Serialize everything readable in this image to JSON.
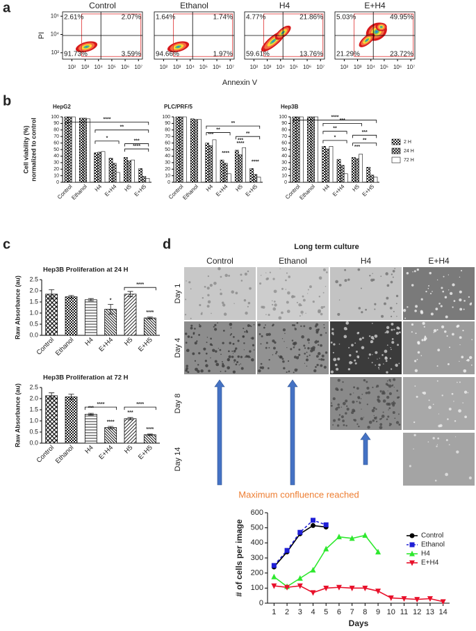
{
  "panel_labels": [
    "a",
    "b",
    "c",
    "d"
  ],
  "chart_data": [
    {
      "type": "flow",
      "title": "Control",
      "ylabel": "PI",
      "xscale": "log",
      "yscale": "log",
      "xlim": [
        20,
        20000000
      ],
      "ylim": [
        20,
        3000000
      ],
      "xticks": [
        {
          "value": 100,
          "label": "10²"
        },
        {
          "value": 1000,
          "label": "10³"
        },
        {
          "value": 10000,
          "label": "10⁴"
        },
        {
          "value": 100000,
          "label": "10⁵"
        },
        {
          "value": 1000000,
          "label": "10⁶"
        },
        {
          "value": 10000000,
          "label": "10⁷"
        }
      ],
      "yticks": [
        {
          "value": 100,
          "label": "10²"
        },
        {
          "value": 10000,
          "label": "10⁴"
        },
        {
          "value": 1000000,
          "label": "10⁶"
        }
      ],
      "values": [
        2.61,
        2.07,
        91.73,
        3.59
      ],
      "value_labels": [
        "2.61%",
        "2.07%",
        "91.73%",
        "3.59%"
      ]
    },
    {
      "type": "flow",
      "title": "Ethanol",
      "xlabel": "Annexin V",
      "xscale": "log",
      "yscale": "log",
      "xlim": [
        20,
        20000000
      ],
      "ylim": [
        20,
        3000000
      ],
      "xticks": [
        {
          "value": 100,
          "label": "10²"
        },
        {
          "value": 1000,
          "label": "10³"
        },
        {
          "value": 10000,
          "label": "10⁴"
        },
        {
          "value": 100000,
          "label": "10⁵"
        },
        {
          "value": 1000000,
          "label": "10⁶"
        },
        {
          "value": 10000000,
          "label": "10⁷"
        }
      ],
      "values": [
        1.64,
        1.74,
        94.66,
        1.97
      ],
      "value_labels": [
        "1.64%",
        "1.74%",
        "94.66%",
        "1.97%"
      ]
    },
    {
      "type": "flow",
      "title": "H4",
      "xscale": "log",
      "yscale": "log",
      "xlim": [
        20,
        20000000
      ],
      "ylim": [
        20,
        3000000
      ],
      "xticks": [
        {
          "value": 100,
          "label": "10²"
        },
        {
          "value": 1000,
          "label": "10³"
        },
        {
          "value": 10000,
          "label": "10⁴"
        },
        {
          "value": 100000,
          "label": "10⁵"
        },
        {
          "value": 1000000,
          "label": "10⁶"
        },
        {
          "value": 10000000,
          "label": "10⁷"
        }
      ],
      "values": [
        4.77,
        21.86,
        59.61,
        13.76
      ],
      "value_labels": [
        "4.77%",
        "21.86%",
        "59.61%",
        "13.76%"
      ]
    },
    {
      "type": "flow",
      "title": "E+H4",
      "xscale": "log",
      "yscale": "log",
      "xlim": [
        20,
        20000000
      ],
      "ylim": [
        20,
        3000000
      ],
      "xticks": [
        {
          "value": 100,
          "label": "10²"
        },
        {
          "value": 1000,
          "label": "10³"
        },
        {
          "value": 10000,
          "label": "10⁴"
        },
        {
          "value": 100000,
          "label": "10⁵"
        },
        {
          "value": 1000000,
          "label": "10⁶"
        },
        {
          "value": 10000000,
          "label": "10⁷"
        }
      ],
      "values": [
        5.03,
        49.95,
        21.29,
        23.72
      ],
      "value_labels": [
        "5.03%",
        "49.95%",
        "21.29%",
        "23.72%"
      ]
    },
    {
      "type": "bar",
      "title": "HepG2",
      "ylabel": [
        "Cell viability (%)",
        "normalized to control"
      ],
      "categories": [
        "Control",
        "Ethanol",
        "H4",
        "E+H4",
        "H5",
        "E+H5"
      ],
      "series": [
        {
          "name": "2 H",
          "color": "#111111",
          "pattern": "checker",
          "values": [
            100,
            98,
            45,
            37,
            38,
            21
          ]
        },
        {
          "name": "24 H",
          "color": "#111111",
          "pattern": "cross",
          "values": [
            100,
            98,
            46,
            29,
            33,
            9
          ]
        },
        {
          "name": "72 H",
          "color": "#111111",
          "pattern": "none",
          "values": [
            100,
            97,
            47,
            15,
            34,
            6
          ]
        }
      ],
      "ylim": [
        0,
        100
      ],
      "yticks": [
        0,
        10,
        20,
        30,
        40,
        50,
        60,
        70,
        80,
        90,
        100
      ],
      "annotations": [
        "****",
        "**",
        "*",
        "***",
        "****"
      ]
    },
    {
      "type": "bar",
      "title": "PLC/PRF/5",
      "categories": [
        "Control",
        "Ethanol",
        "H4",
        "E+H4",
        "H5",
        "E+H5"
      ],
      "series": [
        {
          "name": "2 H",
          "color": "#111111",
          "pattern": "checker",
          "values": [
            100,
            97,
            60,
            34,
            49,
            21
          ]
        },
        {
          "name": "24 H",
          "color": "#111111",
          "pattern": "cross",
          "values": [
            100,
            96,
            56,
            29,
            42,
            12
          ]
        },
        {
          "name": "72 H",
          "color": "#111111",
          "pattern": "none",
          "values": [
            100,
            96,
            65,
            13,
            53,
            8
          ]
        }
      ],
      "ylim": [
        0,
        100
      ],
      "yticks": [
        0,
        10,
        20,
        30,
        40,
        50,
        60,
        70,
        80,
        90,
        100
      ],
      "annotations": [
        "**",
        "**",
        "***",
        "****",
        "***",
        "****",
        "**",
        "****"
      ]
    },
    {
      "type": "bar",
      "title": "Hep3B",
      "legend": "right",
      "categories": [
        "Control",
        "Ethanol",
        "H4",
        "E+H4",
        "H5",
        "E+H5"
      ],
      "series": [
        {
          "name": "2 H",
          "color": "#111111",
          "pattern": "checker",
          "values": [
            100,
            100,
            55,
            35,
            38,
            23
          ]
        },
        {
          "name": "24 H",
          "color": "#111111",
          "pattern": "cross",
          "values": [
            100,
            100,
            51,
            26,
            36,
            11
          ]
        },
        {
          "name": "72 H",
          "color": "#111111",
          "pattern": "none",
          "values": [
            100,
            100,
            55,
            13,
            43,
            8
          ]
        }
      ],
      "ylim": [
        0,
        100
      ],
      "yticks": [
        0,
        10,
        20,
        30,
        40,
        50,
        60,
        70,
        80,
        90,
        100
      ],
      "annotations": [
        "****",
        "***",
        "**",
        "*",
        "***",
        "***",
        "**"
      ]
    },
    {
      "type": "bar",
      "title": "Hep3B Proliferation at 24 H",
      "ylabel": "Raw Absorbance (au)",
      "categories": [
        "Control",
        "Ethanol",
        "H4",
        "E+H4",
        "H5",
        "E+H5"
      ],
      "values": [
        1.85,
        1.73,
        1.6,
        1.17,
        1.85,
        0.78
      ],
      "errors": [
        0.2,
        0.06,
        0.05,
        0.22,
        0.12,
        0.04
      ],
      "color": "#111111",
      "ylim": [
        0,
        2.5
      ],
      "yticks": [
        {
          "value": 0,
          "label": "0.0"
        },
        0.5,
        {
          "value": 1,
          "label": "1.0"
        },
        1.5,
        {
          "value": 2,
          "label": "2.0"
        },
        2.5
      ],
      "annotations": [
        "*",
        "****",
        "****"
      ]
    },
    {
      "type": "bar",
      "title": "Hep3B Proliferation at 72 H",
      "ylabel": "Raw Absorbance (au)",
      "categories": [
        "Control",
        "Ethanol",
        "H4",
        "E+H4",
        "H5",
        "E+H5"
      ],
      "values": [
        2.13,
        2.08,
        1.3,
        0.7,
        1.1,
        0.38
      ],
      "errors": [
        0.13,
        0.12,
        0.04,
        0.05,
        0.05,
        0.03
      ],
      "color": "#111111",
      "ylim": [
        0,
        2.5
      ],
      "yticks": [
        {
          "value": 0,
          "label": "0.0"
        },
        0.5,
        {
          "value": 1,
          "label": "1.0"
        },
        1.5,
        {
          "value": 2,
          "label": "2.0"
        },
        2.5
      ],
      "annotations": [
        "***",
        "****",
        "****",
        "***",
        "****",
        "****"
      ]
    },
    {
      "type": "line",
      "xlabel": "Days",
      "ylabel": "# of cells per image",
      "legend": "right",
      "x": [
        1,
        2,
        3,
        4,
        5,
        6,
        7,
        8,
        9,
        10,
        11,
        12,
        13,
        14
      ],
      "xlim": [
        0.5,
        14.5
      ],
      "xticks": [
        1,
        2,
        3,
        4,
        5,
        6,
        7,
        8,
        9,
        10,
        11,
        12,
        13,
        14
      ],
      "ylim": [
        0,
        600
      ],
      "yticks": [
        0,
        100,
        200,
        300,
        400,
        500,
        600
      ],
      "series": [
        {
          "name": "Control",
          "color": "#000000",
          "marker": "circle",
          "values": [
            240,
            340,
            460,
            515,
            505,
            null,
            null,
            null,
            null,
            null,
            null,
            null,
            null,
            null
          ]
        },
        {
          "name": "Ethanol",
          "color": "#1f1fd6",
          "marker": "square",
          "dash": true,
          "values": [
            250,
            350,
            470,
            550,
            520,
            null,
            null,
            null,
            null,
            null,
            null,
            null,
            null,
            null
          ]
        },
        {
          "name": "H4",
          "color": "#2ee82e",
          "marker": "triangle-up",
          "values": [
            175,
            110,
            165,
            220,
            360,
            440,
            430,
            450,
            340,
            null,
            null,
            null,
            null,
            null
          ]
        },
        {
          "name": "E+H4",
          "color": "#e8102a",
          "marker": "triangle-down",
          "values": [
            115,
            105,
            115,
            70,
            100,
            105,
            100,
            100,
            80,
            35,
            30,
            25,
            30,
            10
          ]
        }
      ]
    }
  ],
  "microscopy": {
    "title": "Long term culture",
    "columns": [
      "Control",
      "Ethanol",
      "H4",
      "E+H4"
    ],
    "rows": [
      "Day 1",
      "Day 4",
      "Day 8",
      "Day 14"
    ],
    "note": "Maximum confluence reached"
  }
}
